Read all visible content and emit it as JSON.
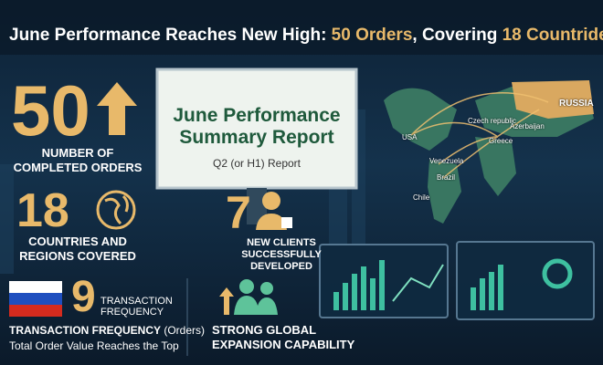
{
  "header": {
    "title_parts": [
      "June Performance Reaches New High: ",
      "50 Orders",
      ", Covering ",
      "18 Countride"
    ]
  },
  "orders": {
    "number": 50,
    "label_lines": [
      "NUMBER OF",
      "COMPLETED ORDERS"
    ]
  },
  "countries": {
    "number": 18,
    "label_lines": [
      "COUNTRIES AND",
      "REGIONS COVERED"
    ]
  },
  "frequency": {
    "number": 9,
    "side_lines": [
      "TRANSACTION",
      "FREQUENCY"
    ],
    "caption_bold": "TRANSACTION FREQUENCY",
    "caption_suffix": " (Orders)",
    "caption_line2": "Total Order Value Reaches the Top"
  },
  "report": {
    "title_lines": [
      "June Performance",
      "Summary Report"
    ],
    "subtitle": "Q2 (or H1) Report"
  },
  "clients": {
    "number": 7,
    "label_lines": [
      "NEW CLIENTS SUCCESSFULLY",
      "DEVELOPED"
    ]
  },
  "expansion": {
    "label_lines": [
      "STRONG GLOBAL",
      "EXPANSION CAPABILITY"
    ]
  },
  "map": {
    "labels": [
      "RUSSIA",
      "Czech republic",
      "Azerbaijan",
      "USA",
      "Greece",
      "Venezuela",
      "Brazil",
      "Chile"
    ]
  }
}
